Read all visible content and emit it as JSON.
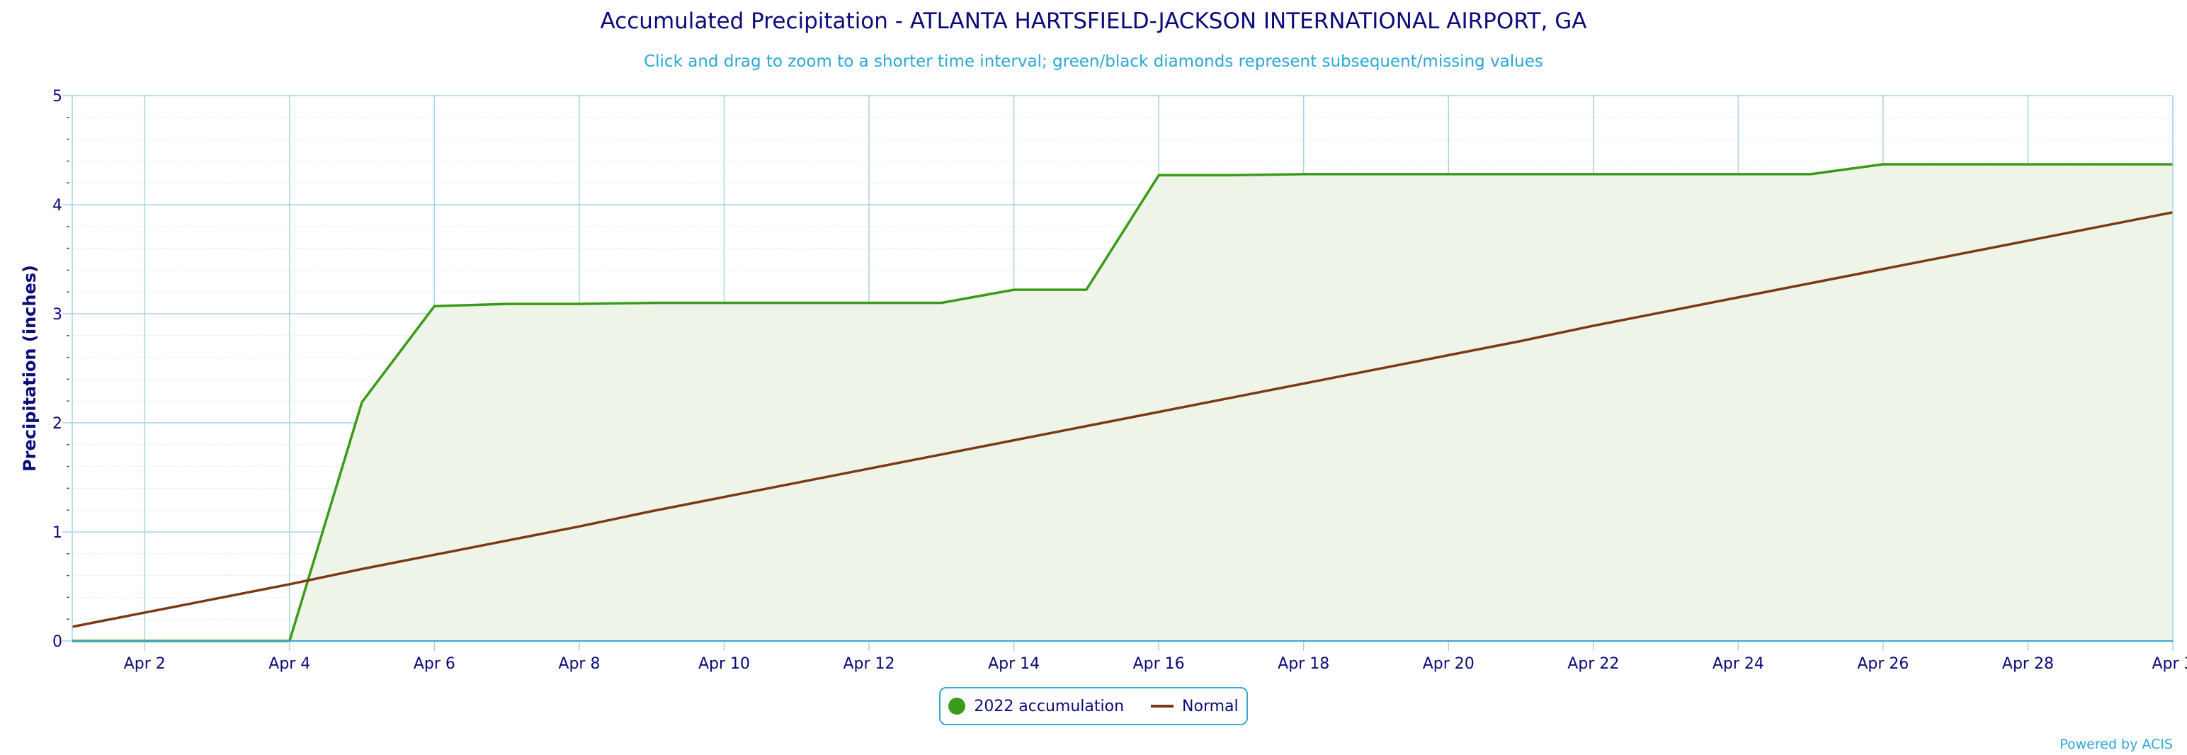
{
  "title": "Accumulated Precipitation - ATLANTA HARTSFIELD-JACKSON INTERNATIONAL AIRPORT, GA",
  "subtitle": "Click and drag to zoom to a shorter time interval; green/black diamonds represent subsequent/missing values",
  "credits": "Powered by ACIS",
  "colors": {
    "accumulation_line": "#3a9a1a",
    "accumulation_fill": "#eef5e8",
    "normal_line": "#7b3a14",
    "grid": "#a9d3e8",
    "axis_text": "#0b0b7a",
    "accent": "#2aa7d6"
  },
  "chart_data": {
    "type": "area",
    "title": "Accumulated Precipitation - ATLANTA HARTSFIELD-JACKSON INTERNATIONAL AIRPORT, GA",
    "xlabel": "",
    "ylabel": "Precipitation (inches)",
    "ylim": [
      0,
      5
    ],
    "y_ticks": [
      "0",
      "1",
      "2",
      "3",
      "4",
      "5"
    ],
    "x_ticks": [
      "Apr 2",
      "Apr 4",
      "Apr 6",
      "Apr 8",
      "Apr 10",
      "Apr 12",
      "Apr 14",
      "Apr 16",
      "Apr 18",
      "Apr 20",
      "Apr 22",
      "Apr 24",
      "Apr 26",
      "Apr 28",
      "Apr 3"
    ],
    "x": [
      1,
      2,
      3,
      4,
      5,
      6,
      7,
      8,
      9,
      10,
      11,
      12,
      13,
      14,
      15,
      16,
      17,
      18,
      19,
      20,
      21,
      22,
      23,
      24,
      25,
      26,
      27,
      28,
      29,
      30
    ],
    "grid": true,
    "legend_position": "bottom-center",
    "series": [
      {
        "name": "2022 accumulation",
        "values": [
          0,
          0,
          0,
          0,
          2.19,
          3.07,
          3.09,
          3.09,
          3.1,
          3.1,
          3.1,
          3.1,
          3.1,
          3.22,
          3.22,
          4.27,
          4.27,
          4.28,
          4.28,
          4.28,
          4.28,
          4.28,
          4.28,
          4.28,
          4.28,
          4.37,
          4.37,
          4.37,
          4.37,
          4.37
        ]
      },
      {
        "name": "Normal",
        "values": [
          0.13,
          0.26,
          0.39,
          0.52,
          0.66,
          0.79,
          0.92,
          1.05,
          1.19,
          1.32,
          1.45,
          1.58,
          1.71,
          1.84,
          1.97,
          2.1,
          2.23,
          2.36,
          2.49,
          2.62,
          2.75,
          2.89,
          3.02,
          3.15,
          3.28,
          3.41,
          3.54,
          3.67,
          3.8,
          3.93
        ]
      }
    ]
  }
}
